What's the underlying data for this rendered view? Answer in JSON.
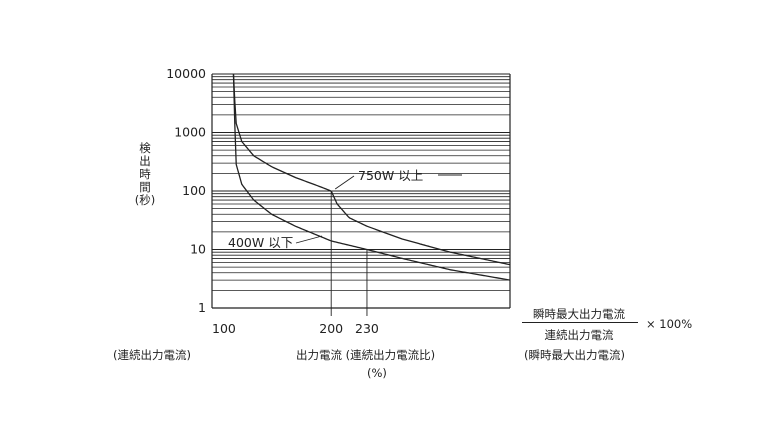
{
  "chart_data": {
    "type": "line",
    "y_scale": "log",
    "ylim": [
      1,
      10000
    ],
    "y_ticks": [
      "10000",
      "1000",
      "100",
      "10",
      "1"
    ],
    "y_tick_values": [
      10000,
      1000,
      100,
      10,
      1
    ],
    "x_ticks": [
      "100",
      "200",
      "230"
    ],
    "x_tick_values": [
      100,
      200,
      230
    ],
    "xlim": [
      100,
      350
    ],
    "grid": true,
    "ylabel_chars": [
      "検",
      "出",
      "時",
      "間",
      "(秒)"
    ],
    "series": [
      {
        "name": "750W 以上",
        "x": [
          118,
          120,
          125,
          135,
          150,
          170,
          190,
          200,
          205,
          215,
          230,
          260,
          300,
          350
        ],
        "y": [
          10000,
          1500,
          700,
          400,
          260,
          170,
          120,
          100,
          60,
          35,
          25,
          15,
          9,
          5.5
        ]
      },
      {
        "name": "400W 以下",
        "x": [
          118,
          120,
          125,
          135,
          150,
          170,
          200,
          230,
          260,
          300,
          350
        ],
        "y": [
          10000,
          300,
          130,
          70,
          40,
          25,
          14,
          10,
          7,
          4.5,
          3
        ]
      }
    ],
    "annotations": {
      "series_750": "750W 以上",
      "series_400": "400W 以下"
    },
    "x_under_left": "(連続出力電流)",
    "x_center_line1": "出力電流 (連続出力電流比)",
    "x_center_line2": "(%)",
    "fraction_numerator": "瞬時最大出力電流",
    "fraction_denominator": "連続出力電流",
    "fraction_multiplier": "× 100%",
    "x_under_right": "(瞬時最大出力電流)"
  }
}
